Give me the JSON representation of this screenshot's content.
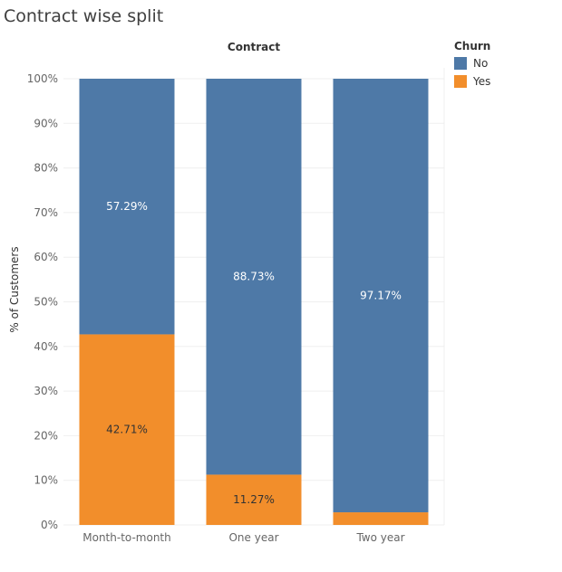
{
  "title": "Contract wise split",
  "chart_data": {
    "type": "bar",
    "stacked": true,
    "header": "Contract",
    "categories": [
      "Month-to-month",
      "One year",
      "Two year"
    ],
    "series": [
      {
        "name": "Yes",
        "color": "#f28e2b",
        "values": [
          42.71,
          11.27,
          2.83
        ],
        "labels": [
          "42.71%",
          "11.27%",
          ""
        ],
        "label_color": "#333333"
      },
      {
        "name": "No",
        "color": "#4e79a7",
        "values": [
          57.29,
          88.73,
          97.17
        ],
        "labels": [
          "57.29%",
          "88.73%",
          "97.17%"
        ],
        "label_color": "#ffffff"
      }
    ],
    "ylabel": "% of Customers",
    "ylim": [
      0,
      100
    ],
    "yticks": [
      0,
      10,
      20,
      30,
      40,
      50,
      60,
      70,
      80,
      90,
      100
    ],
    "ytick_labels": [
      "0%",
      "10%",
      "20%",
      "30%",
      "40%",
      "50%",
      "60%",
      "70%",
      "80%",
      "90%",
      "100%"
    ],
    "grid": true,
    "legend": {
      "title": "Churn",
      "position": "top-right"
    }
  }
}
